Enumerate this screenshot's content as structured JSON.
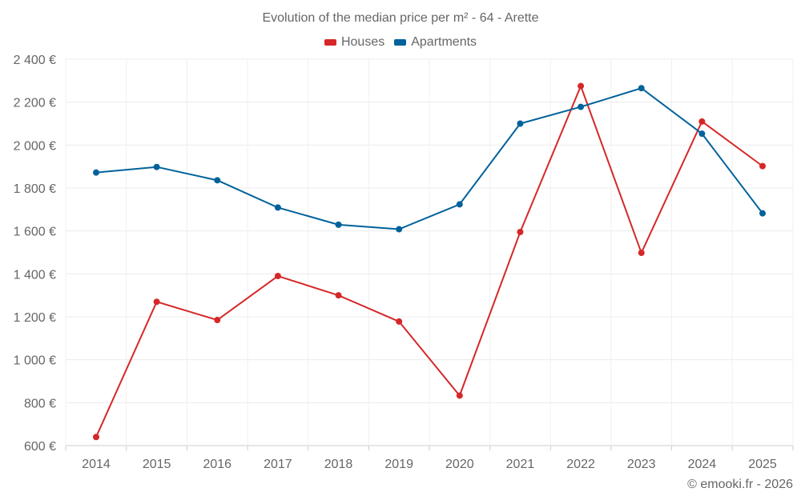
{
  "chart_data": {
    "type": "line",
    "title": "Evolution of the median price per m² - 64 - Arette",
    "categories": [
      "2014",
      "2015",
      "2016",
      "2017",
      "2018",
      "2019",
      "2020",
      "2021",
      "2022",
      "2023",
      "2024",
      "2025"
    ],
    "series": [
      {
        "name": "Houses",
        "color": "#d62728",
        "values": [
          640,
          1270,
          1185,
          1390,
          1300,
          1178,
          833,
          1595,
          2275,
          1498,
          2110,
          1902
        ]
      },
      {
        "name": "Apartments",
        "color": "#00629b",
        "values": [
          1872,
          1898,
          1836,
          1709,
          1629,
          1608,
          1724,
          2100,
          2178,
          2265,
          2053,
          1682
        ]
      }
    ],
    "y_ticks": [
      "600 €",
      "800 €",
      "1 000 €",
      "1 200 €",
      "1 400 €",
      "1 600 €",
      "1 800 €",
      "2 000 €",
      "2 200 €",
      "2 400 €"
    ],
    "ylim": [
      600,
      2400
    ],
    "y_tick_values": [
      600,
      800,
      1000,
      1200,
      1400,
      1600,
      1800,
      2000,
      2200,
      2400
    ],
    "grid": true,
    "legend_position": "top-center",
    "credit": "© emooki.fr - 2026"
  }
}
